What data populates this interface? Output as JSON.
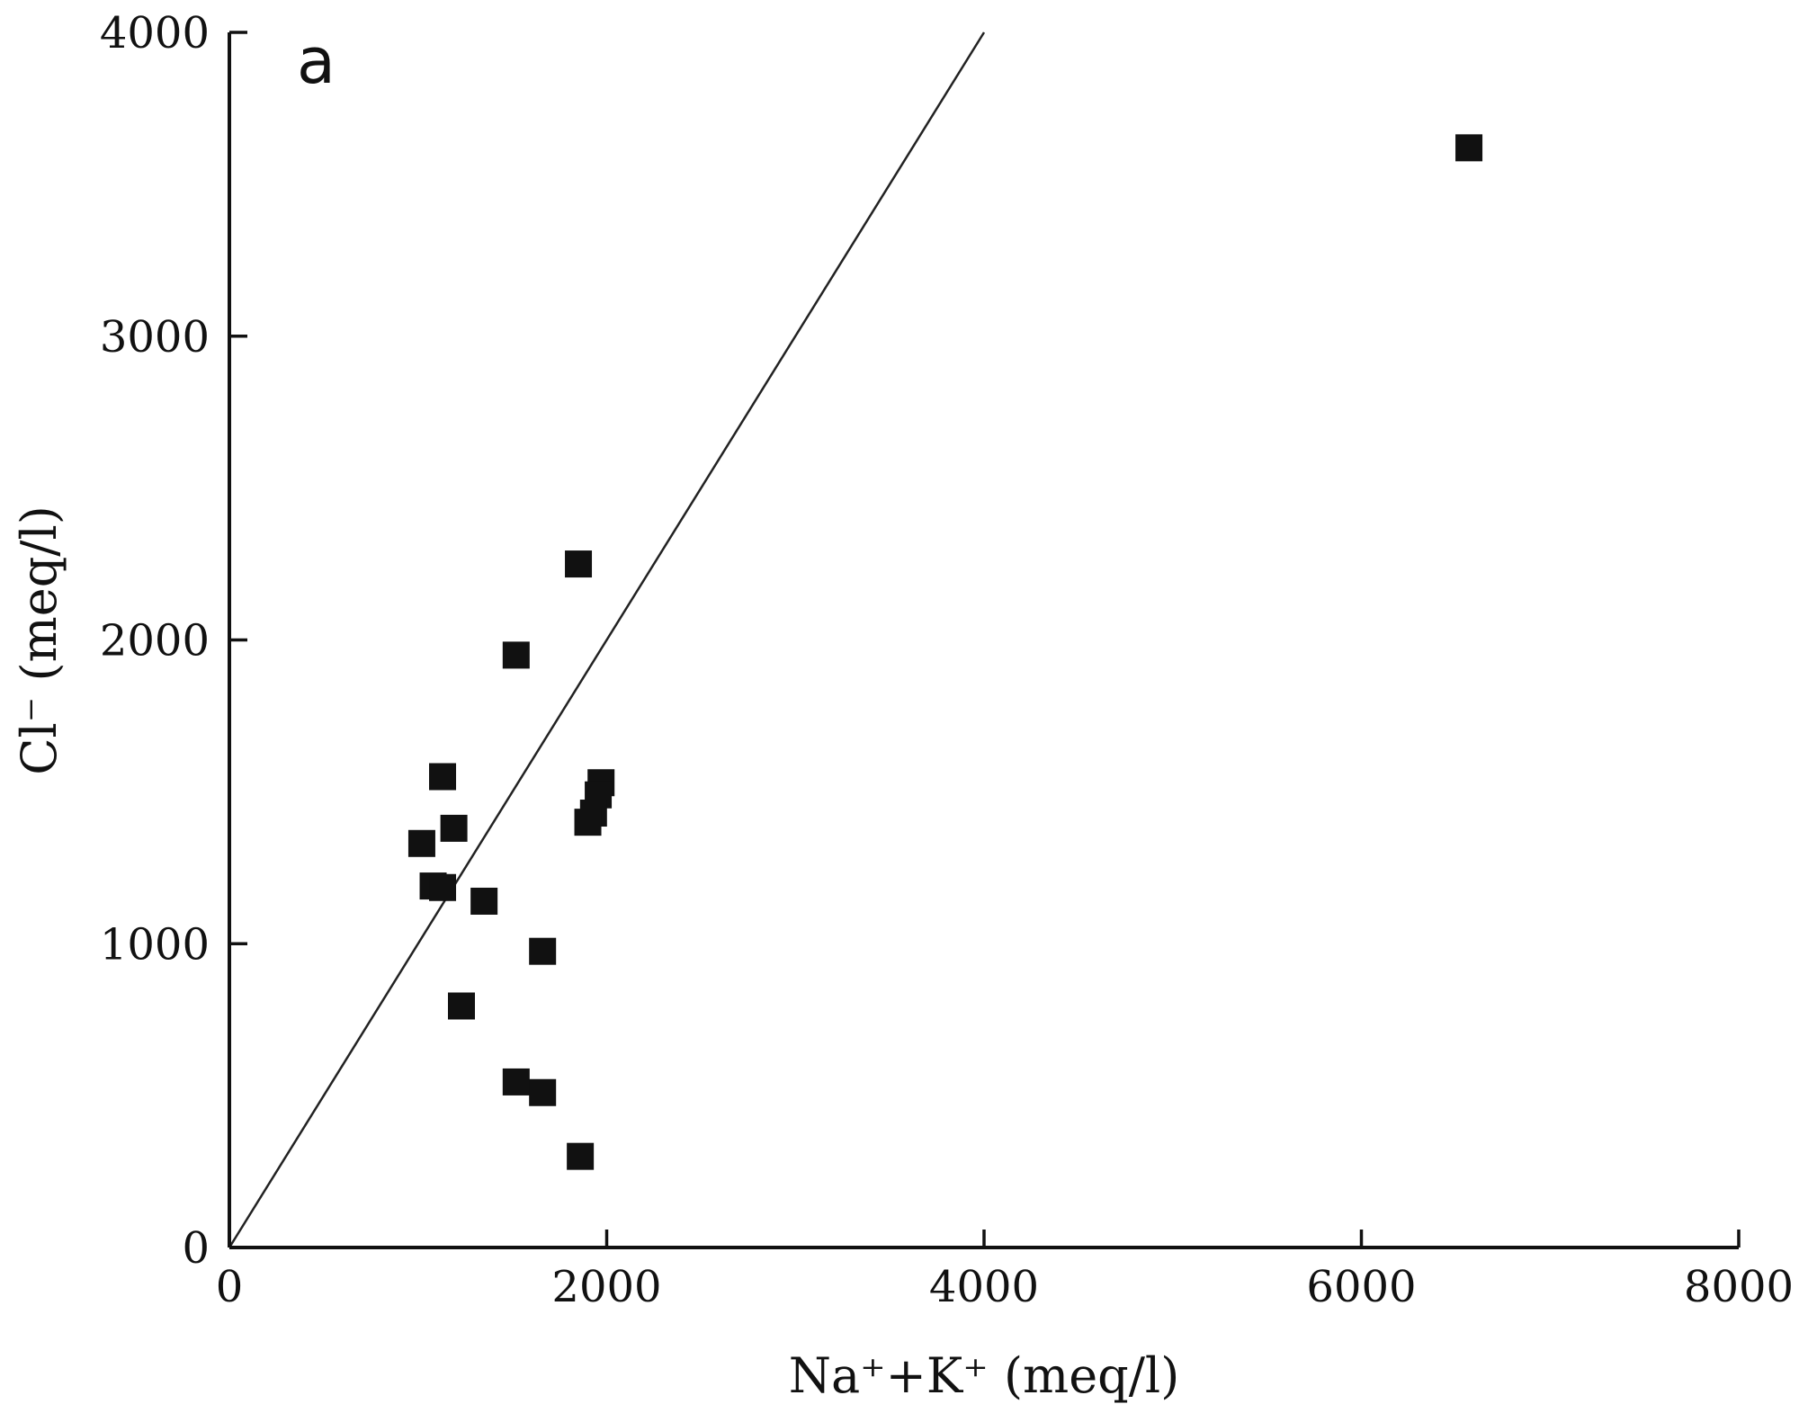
{
  "figure": {
    "panel_label": "a",
    "background_color": "#ffffff",
    "axis_color": "#111111"
  },
  "chart_data": {
    "type": "scatter",
    "title": "",
    "xlabel": "Na⁺+K⁺ (meq/l)",
    "ylabel": "Cl⁻ (meq/l)",
    "xlim": [
      0,
      8000
    ],
    "ylim": [
      0,
      4000
    ],
    "xticks": [
      0,
      2000,
      4000,
      6000,
      8000
    ],
    "yticks": [
      0,
      1000,
      2000,
      3000,
      4000
    ],
    "grid": false,
    "legend": "none",
    "marker": {
      "shape": "square",
      "color": "#111111",
      "size": 30
    },
    "reference_line": {
      "name": "1:1 line",
      "x": [
        0,
        4000
      ],
      "y": [
        0,
        4000
      ],
      "color": "#222222"
    },
    "points": [
      {
        "x": 6570,
        "y": 3620
      },
      {
        "x": 1850,
        "y": 2250
      },
      {
        "x": 1520,
        "y": 1950
      },
      {
        "x": 1130,
        "y": 1550
      },
      {
        "x": 1190,
        "y": 1380
      },
      {
        "x": 1020,
        "y": 1330
      },
      {
        "x": 1080,
        "y": 1190
      },
      {
        "x": 1130,
        "y": 1185
      },
      {
        "x": 1350,
        "y": 1140
      },
      {
        "x": 1970,
        "y": 1530
      },
      {
        "x": 1955,
        "y": 1490
      },
      {
        "x": 1930,
        "y": 1430
      },
      {
        "x": 1900,
        "y": 1400
      },
      {
        "x": 1660,
        "y": 975
      },
      {
        "x": 1230,
        "y": 795
      },
      {
        "x": 1520,
        "y": 545
      },
      {
        "x": 1660,
        "y": 510
      },
      {
        "x": 1860,
        "y": 300
      }
    ]
  }
}
